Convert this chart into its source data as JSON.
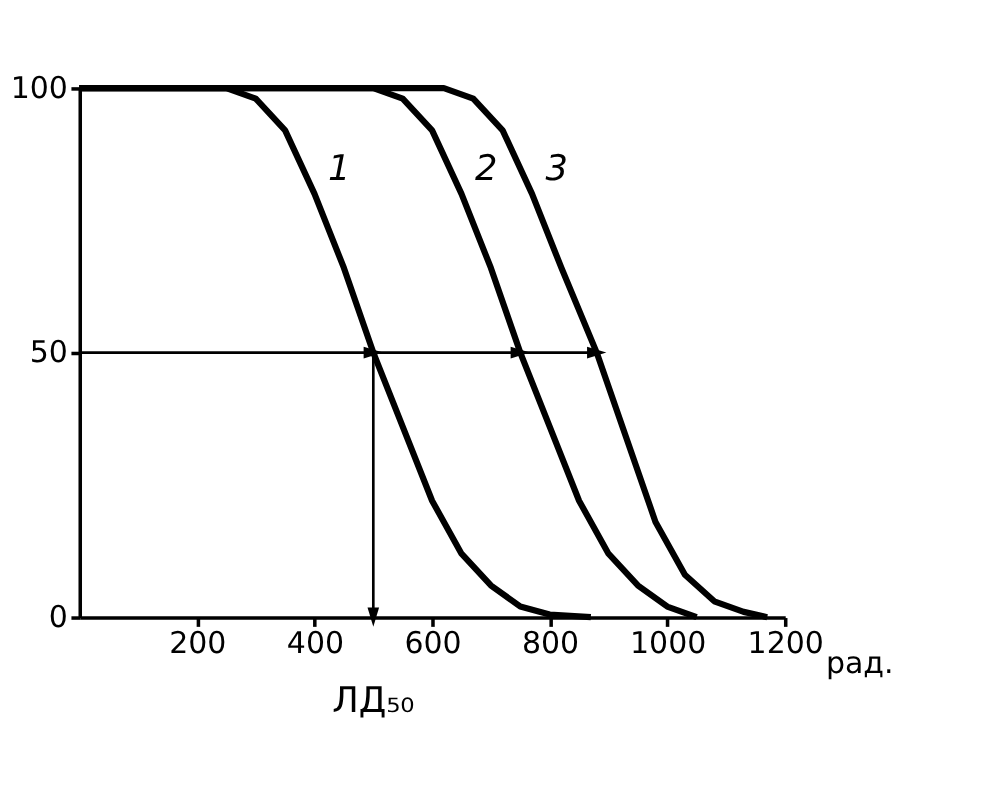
{
  "chart_data": {
    "type": "line",
    "xlabel": "рад.",
    "xlim": [
      0,
      1200
    ],
    "xticks": [
      200,
      400,
      600,
      800,
      1000,
      1200
    ],
    "ylim": [
      0,
      100
    ],
    "yticks": [
      0,
      50,
      100
    ],
    "line_style": "solid",
    "series": [
      {
        "name": "1",
        "color": "#000000",
        "x": [
          0,
          250,
          300,
          350,
          400,
          450,
          500,
          550,
          600,
          650,
          700,
          750,
          800,
          870
        ],
        "values": [
          100,
          100,
          98,
          92,
          80,
          66,
          50,
          36,
          22,
          12,
          6,
          2,
          0.5,
          0
        ]
      },
      {
        "name": "2",
        "color": "#000000",
        "x": [
          0,
          500,
          550,
          600,
          650,
          700,
          750,
          800,
          850,
          900,
          950,
          1000,
          1050
        ],
        "values": [
          100,
          100,
          98,
          92,
          80,
          66,
          50,
          36,
          22,
          12,
          6,
          2,
          0
        ]
      },
      {
        "name": "3",
        "color": "#000000",
        "x": [
          0,
          620,
          670,
          720,
          770,
          820,
          880,
          930,
          980,
          1030,
          1080,
          1130,
          1170
        ],
        "values": [
          100,
          100,
          98,
          92,
          80,
          66,
          50,
          34,
          18,
          8,
          3,
          1,
          0
        ]
      },
      {
        "type": "line",
        "color": "#000000",
        "x": [
          0,
          500,
          750,
          880
        ],
        "values": [
          50,
          50,
          50,
          50
        ]
      },
      {
        "type": "line",
        "color": "#000000",
        "marker": "triangle",
        "x": [
          500,
          500
        ],
        "values": [
          50,
          0
        ]
      }
    ],
    "annotations": [
      "ЛД₅₀"
    ]
  }
}
